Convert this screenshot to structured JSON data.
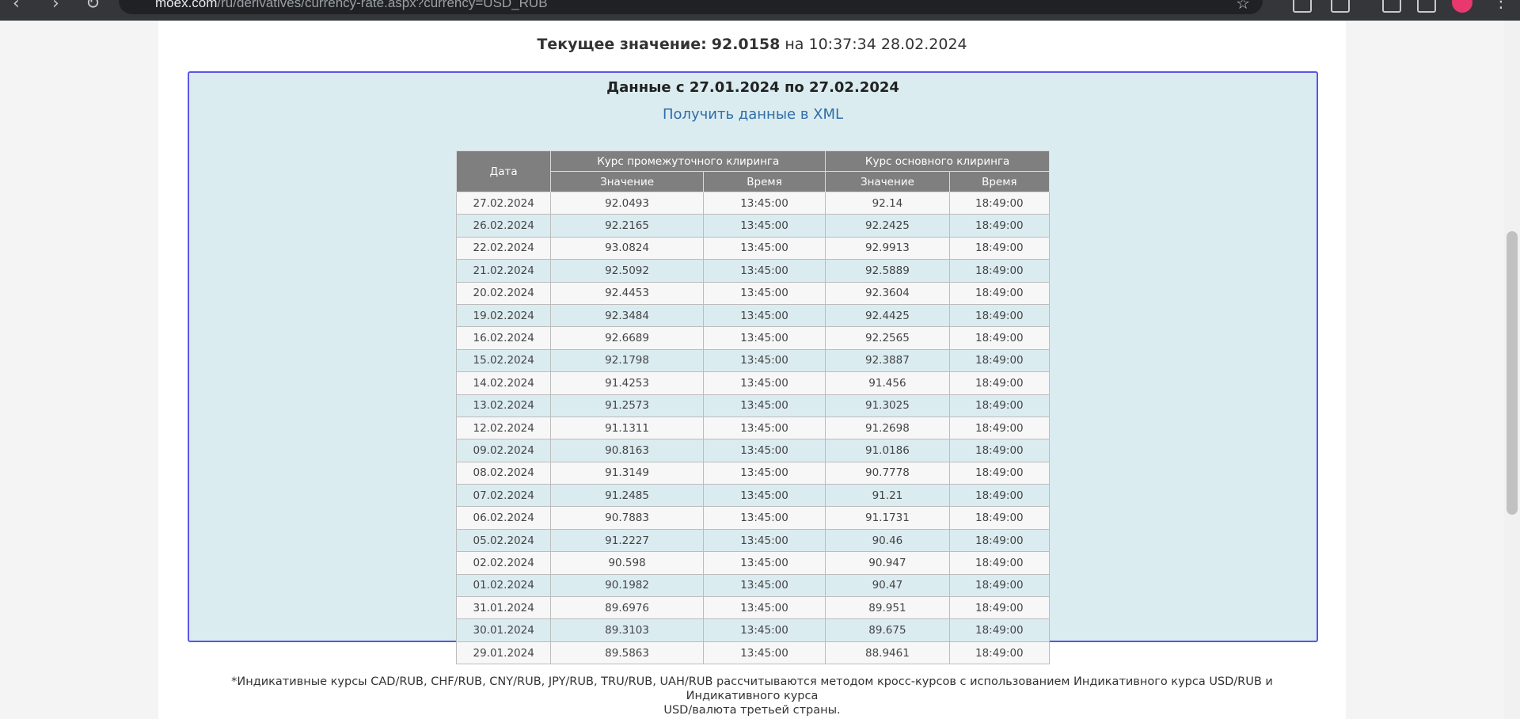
{
  "browser": {
    "back_icon": "‹",
    "forward_icon": "›",
    "reload_icon": "↻",
    "url_domain": "moex.com",
    "url_path": "/ru/derivatives/currency-rate.aspx?currency=USD_RUB",
    "star_icon": "☆",
    "menu_icon": "⋮"
  },
  "current": {
    "label": "Текущее значение:",
    "value": "92.0158",
    "on": "на",
    "time": "10:37:34 28.02.2024"
  },
  "panel": {
    "title": "Данные с 27.01.2024 по 27.02.2024",
    "xml_link": "Получить данные в XML"
  },
  "table": {
    "col_date": "Дата",
    "group_intermediate": "Курс промежуточного клиринга",
    "group_main": "Курс основного клиринга",
    "sub_value": "Значение",
    "sub_time": "Время",
    "rows": [
      [
        "27.02.2024",
        "92.0493",
        "13:45:00",
        "92.14",
        "18:49:00"
      ],
      [
        "26.02.2024",
        "92.2165",
        "13:45:00",
        "92.2425",
        "18:49:00"
      ],
      [
        "22.02.2024",
        "93.0824",
        "13:45:00",
        "92.9913",
        "18:49:00"
      ],
      [
        "21.02.2024",
        "92.5092",
        "13:45:00",
        "92.5889",
        "18:49:00"
      ],
      [
        "20.02.2024",
        "92.4453",
        "13:45:00",
        "92.3604",
        "18:49:00"
      ],
      [
        "19.02.2024",
        "92.3484",
        "13:45:00",
        "92.4425",
        "18:49:00"
      ],
      [
        "16.02.2024",
        "92.6689",
        "13:45:00",
        "92.2565",
        "18:49:00"
      ],
      [
        "15.02.2024",
        "92.1798",
        "13:45:00",
        "92.3887",
        "18:49:00"
      ],
      [
        "14.02.2024",
        "91.4253",
        "13:45:00",
        "91.456",
        "18:49:00"
      ],
      [
        "13.02.2024",
        "91.2573",
        "13:45:00",
        "91.3025",
        "18:49:00"
      ],
      [
        "12.02.2024",
        "91.1311",
        "13:45:00",
        "91.2698",
        "18:49:00"
      ],
      [
        "09.02.2024",
        "90.8163",
        "13:45:00",
        "91.0186",
        "18:49:00"
      ],
      [
        "08.02.2024",
        "91.3149",
        "13:45:00",
        "90.7778",
        "18:49:00"
      ],
      [
        "07.02.2024",
        "91.2485",
        "13:45:00",
        "91.21",
        "18:49:00"
      ],
      [
        "06.02.2024",
        "90.7883",
        "13:45:00",
        "91.1731",
        "18:49:00"
      ],
      [
        "05.02.2024",
        "91.2227",
        "13:45:00",
        "90.46",
        "18:49:00"
      ],
      [
        "02.02.2024",
        "90.598",
        "13:45:00",
        "90.947",
        "18:49:00"
      ],
      [
        "01.02.2024",
        "90.1982",
        "13:45:00",
        "90.47",
        "18:49:00"
      ],
      [
        "31.01.2024",
        "89.6976",
        "13:45:00",
        "89.951",
        "18:49:00"
      ],
      [
        "30.01.2024",
        "89.3103",
        "13:45:00",
        "89.675",
        "18:49:00"
      ],
      [
        "29.01.2024",
        "89.5863",
        "13:45:00",
        "88.9461",
        "18:49:00"
      ]
    ]
  },
  "footnote": {
    "line1": "*Индикативные курсы CAD/RUB, CHF/RUB, CNY/RUB, JPY/RUB, TRU/RUB, UAH/RUB рассчитываются методом кросс-курсов с использованием Индикативного курса USD/RUB и Индикативного курса",
    "line2": "USD/валюта третьей страны."
  },
  "colors": {
    "panel_bg": "#dbecf1",
    "panel_border": "#5a55e8",
    "header_bg": "#7f7f7f",
    "link": "#2e6ea6"
  }
}
